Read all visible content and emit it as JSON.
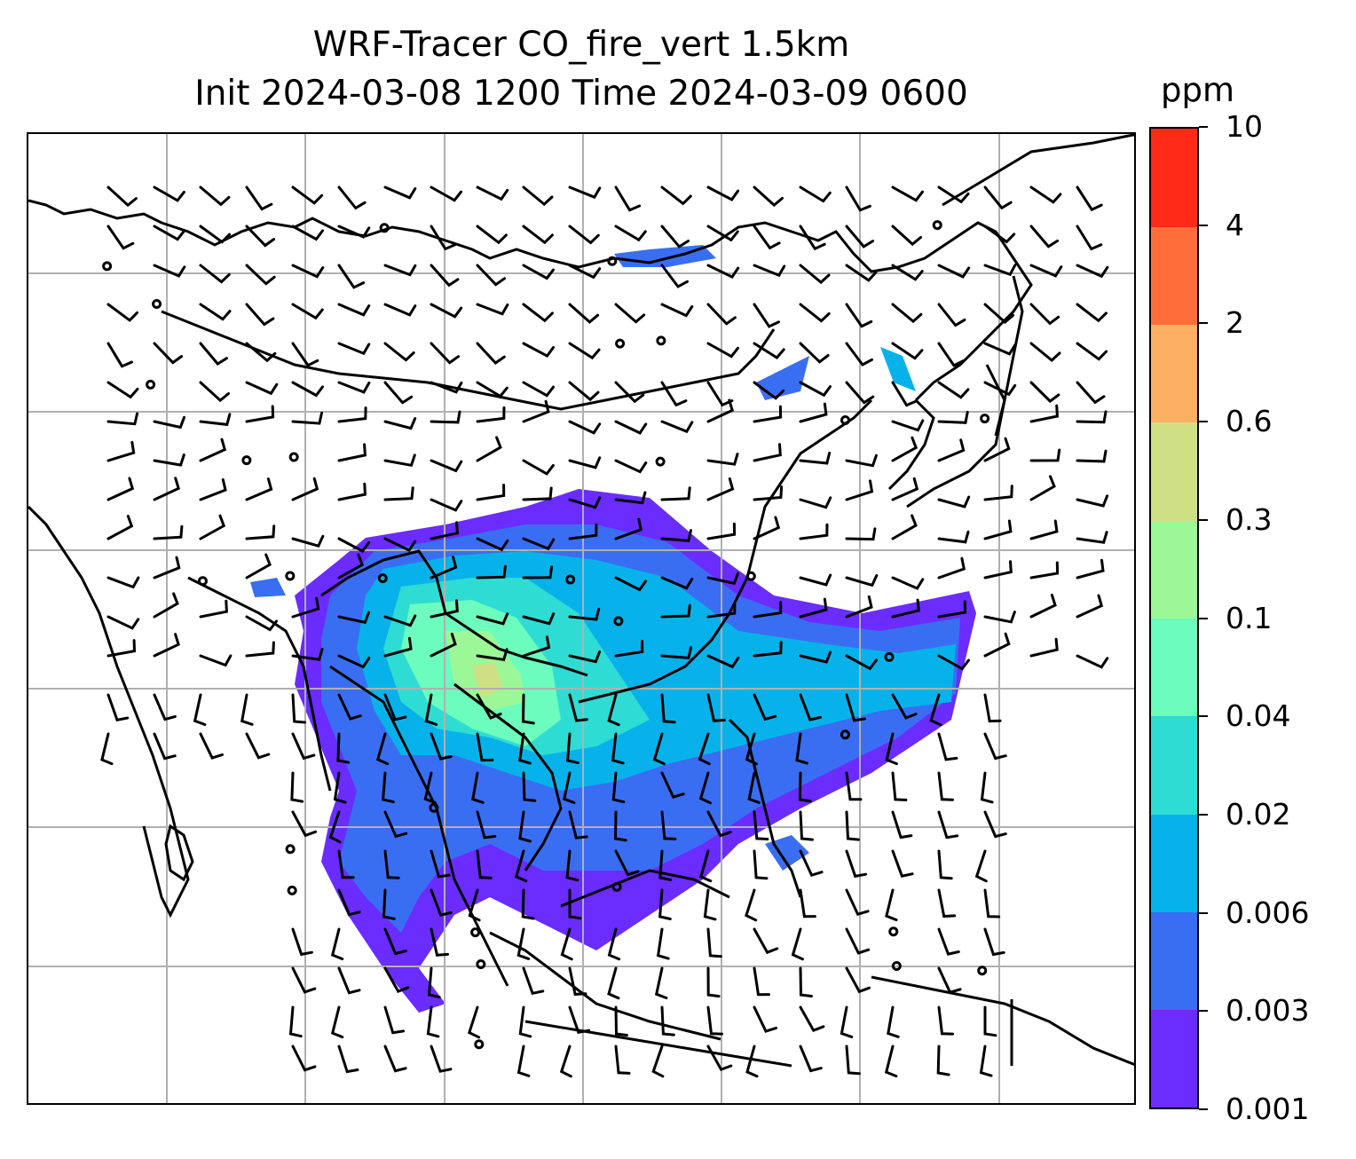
{
  "title": {
    "line1": "WRF-Tracer CO_fire_vert 1.5km",
    "line2": "Init 2024-03-08 1200 Time 2024-03-09 0600"
  },
  "colorbar": {
    "unit": "ppm",
    "levels": [
      "0.001",
      "0.003",
      "0.006",
      "0.02",
      "0.04",
      "0.1",
      "0.3",
      "0.6",
      "2",
      "4",
      "10"
    ],
    "colors": [
      "#6a2cff",
      "#3a6ef2",
      "#07b2ea",
      "#2fdcd4",
      "#6cfcbd",
      "#9cf897",
      "#cfe084",
      "#fdb063",
      "#ff6e3a",
      "#ff2a17"
    ]
  },
  "map": {
    "gridlines": true,
    "coastline_color": "#000000",
    "grid_color": "#b0b0b0",
    "wind_barb_color": "#000000"
  }
}
